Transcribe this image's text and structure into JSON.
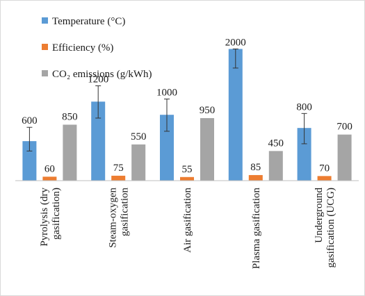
{
  "chart_data": {
    "type": "bar",
    "title": "",
    "xlabel": "",
    "ylabel": "",
    "ylim": [
      0,
      2300
    ],
    "grid": false,
    "legend_position": "top-left",
    "categories": [
      [
        "Pyrolysis (dry",
        "gasification)"
      ],
      [
        "Steam-oxygen",
        "gasification"
      ],
      [
        "Air gasification"
      ],
      [
        "Plasma gasification"
      ],
      [
        "Underground",
        "gasification (UCG)"
      ]
    ],
    "series": [
      {
        "name": "Temperature (°C)",
        "color": "#5b9bd5",
        "values": [
          600,
          1200,
          1000,
          2000,
          800
        ],
        "error_low": [
          450,
          950,
          750,
          1710,
          560
        ],
        "error_high": [
          810,
          1440,
          1240,
          2000,
          1020
        ]
      },
      {
        "name": "Efficiency (%)",
        "color": "#ed7d31",
        "values": [
          60,
          75,
          55,
          85,
          70
        ]
      },
      {
        "name": "CO₂ emissions (g/kWh)",
        "color": "#a5a5a5",
        "values": [
          850,
          550,
          950,
          450,
          700
        ]
      }
    ]
  }
}
